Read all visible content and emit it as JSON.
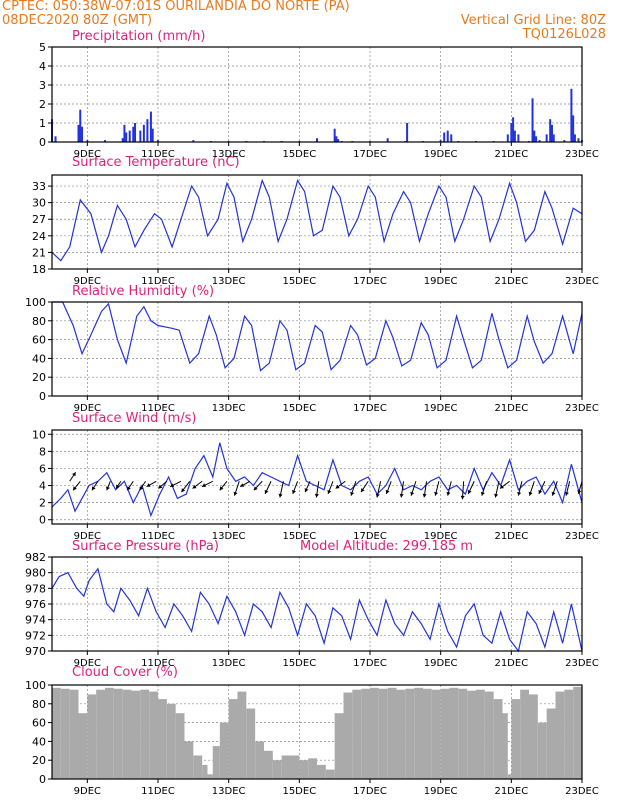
{
  "header": {
    "line1": "CPTEC:   050:38W-07:01S   OURILANDIA DO NORTE (PA)",
    "line2": "08DEC2020 80Z (GMT)",
    "vgrid": "Vertical Grid Line: 80Z",
    "code": "TQ0126L028"
  },
  "colors": {
    "header": "#e87a1e",
    "title": "#e0207a",
    "line": "#2233dd",
    "bar": "#2233dd",
    "cloud": "#aaaaaa",
    "grid": "#888888"
  },
  "chart_data": [
    {
      "type": "bar",
      "title": "Precipitation (mm/h)",
      "x_range": [
        8,
        23
      ],
      "ylim": [
        0,
        5
      ],
      "yticks": [
        0,
        1,
        2,
        3,
        4,
        5
      ],
      "x_ticks": [
        "9DEC",
        "11DEC",
        "13DEC",
        "15DEC",
        "17DEC",
        "19DEC",
        "21DEC",
        "23DEC"
      ],
      "x_tick_days": [
        9,
        11,
        13,
        15,
        17,
        19,
        21,
        23
      ],
      "x": [
        8.0,
        8.1,
        8.75,
        8.8,
        8.85,
        9.0,
        9.5,
        10.0,
        10.05,
        10.1,
        10.2,
        10.3,
        10.35,
        10.5,
        10.6,
        10.7,
        10.8,
        10.85,
        11.0,
        12.0,
        12.5,
        13.0,
        13.5,
        14.0,
        14.5,
        15.0,
        15.5,
        16.0,
        16.05,
        16.1,
        16.2,
        16.5,
        17.0,
        17.5,
        18.0,
        18.05,
        18.5,
        19.0,
        19.1,
        19.2,
        19.3,
        19.5,
        20.0,
        20.5,
        20.9,
        21.0,
        21.05,
        21.1,
        21.2,
        21.5,
        21.6,
        21.65,
        21.7,
        21.8,
        22.0,
        22.1,
        22.15,
        22.2,
        22.5,
        22.7,
        22.75,
        22.8,
        22.9,
        23.0
      ],
      "values": [
        1.2,
        0.3,
        0.9,
        1.7,
        0.8,
        0.1,
        0.1,
        0.2,
        0.9,
        0.5,
        0.6,
        0.8,
        1.0,
        0.6,
        0.9,
        1.2,
        1.6,
        0.7,
        0.1,
        0.1,
        0.05,
        0.05,
        0.05,
        0.05,
        0.05,
        0.05,
        0.2,
        0.7,
        0.3,
        0.15,
        0.05,
        0.05,
        0.05,
        0.2,
        0.05,
        1.0,
        0.05,
        0.1,
        0.5,
        0.6,
        0.4,
        0.05,
        0.05,
        0.05,
        0.4,
        1.0,
        1.3,
        0.6,
        0.4,
        0.05,
        2.3,
        0.6,
        0.3,
        0.1,
        0.4,
        1.2,
        0.9,
        0.4,
        0.1,
        2.8,
        1.4,
        0.4,
        0.2,
        0.1
      ]
    },
    {
      "type": "line",
      "title": "Surface Temperature (nC)",
      "x_range": [
        8,
        23
      ],
      "ylim": [
        18,
        35
      ],
      "yticks": [
        18,
        21,
        24,
        27,
        30,
        33
      ],
      "x_ticks": [
        "9DEC",
        "11DEC",
        "13DEC",
        "15DEC",
        "17DEC",
        "19DEC",
        "21DEC",
        "23DEC"
      ],
      "x_tick_days": [
        9,
        11,
        13,
        15,
        17,
        19,
        21,
        23
      ],
      "x": [
        8.0,
        8.25,
        8.5,
        8.8,
        9.1,
        9.4,
        9.6,
        9.85,
        10.1,
        10.35,
        10.6,
        10.9,
        11.1,
        11.4,
        11.65,
        11.95,
        12.15,
        12.4,
        12.7,
        12.95,
        13.15,
        13.4,
        13.65,
        13.95,
        14.15,
        14.4,
        14.65,
        14.95,
        15.15,
        15.4,
        15.65,
        15.95,
        16.15,
        16.4,
        16.65,
        16.95,
        17.15,
        17.4,
        17.65,
        17.95,
        18.15,
        18.4,
        18.65,
        18.95,
        19.15,
        19.4,
        19.65,
        19.95,
        20.15,
        20.4,
        20.65,
        20.95,
        21.15,
        21.4,
        21.65,
        21.95,
        22.15,
        22.45,
        22.75,
        23.0
      ],
      "values": [
        21.0,
        19.5,
        22.0,
        30.5,
        28.0,
        21.0,
        24.0,
        29.5,
        27.0,
        22.0,
        25.0,
        28.0,
        27.0,
        22.0,
        27.0,
        33.0,
        31.0,
        24.0,
        27.0,
        33.5,
        31.0,
        23.0,
        27.0,
        34.0,
        31.0,
        23.0,
        27.0,
        34.0,
        32.0,
        24.0,
        25.0,
        33.0,
        31.0,
        24.0,
        27.0,
        33.0,
        31.0,
        23.0,
        28.0,
        32.0,
        30.0,
        23.0,
        28.0,
        33.0,
        31.0,
        23.0,
        27.0,
        33.0,
        31.0,
        23.0,
        27.0,
        33.5,
        30.0,
        23.0,
        25.0,
        32.0,
        29.0,
        22.5,
        29.0,
        28.0
      ]
    },
    {
      "type": "line",
      "title": "Relative Humidity (%)",
      "x_range": [
        8,
        23
      ],
      "ylim": [
        0,
        100
      ],
      "yticks": [
        0,
        20,
        40,
        60,
        80,
        100
      ],
      "x_ticks": [
        "9DEC",
        "11DEC",
        "13DEC",
        "15DEC",
        "17DEC",
        "19DEC",
        "21DEC",
        "23DEC"
      ],
      "x_tick_days": [
        9,
        11,
        13,
        15,
        17,
        19,
        21,
        23
      ],
      "x": [
        8.0,
        8.3,
        8.6,
        8.85,
        9.1,
        9.4,
        9.6,
        9.85,
        10.1,
        10.4,
        10.6,
        10.8,
        11.0,
        11.4,
        11.6,
        11.9,
        12.15,
        12.45,
        12.65,
        12.9,
        13.15,
        13.45,
        13.65,
        13.9,
        14.15,
        14.45,
        14.65,
        14.9,
        15.15,
        15.45,
        15.65,
        15.9,
        16.15,
        16.45,
        16.65,
        16.9,
        17.15,
        17.45,
        17.65,
        17.9,
        18.15,
        18.45,
        18.65,
        18.9,
        19.15,
        19.45,
        19.65,
        19.9,
        20.15,
        20.45,
        20.65,
        20.9,
        21.15,
        21.45,
        21.65,
        21.9,
        22.15,
        22.45,
        22.75,
        23.0
      ],
      "values": [
        100.0,
        100.0,
        75.0,
        45.0,
        65.0,
        90.0,
        98.0,
        60.0,
        35.0,
        85.0,
        95.0,
        80.0,
        75.0,
        72.0,
        70.0,
        35.0,
        45.0,
        85.0,
        65.0,
        30.0,
        40.0,
        85.0,
        75.0,
        27.0,
        35.0,
        80.0,
        70.0,
        28.0,
        35.0,
        75.0,
        68.0,
        28.0,
        38.0,
        75.0,
        65.0,
        33.0,
        40.0,
        80.0,
        62.0,
        32.0,
        38.0,
        78.0,
        65.0,
        30.0,
        38.0,
        85.0,
        60.0,
        30.0,
        38.0,
        88.0,
        60.0,
        30.0,
        38.0,
        85.0,
        58.0,
        35.0,
        45.0,
        85.0,
        45.0,
        88.0
      ]
    },
    {
      "type": "line",
      "title": "Surface Wind (m/s)",
      "x_range": [
        8,
        23
      ],
      "ylim": [
        -0.5,
        10.5
      ],
      "yticks": [
        0,
        2,
        4,
        6,
        8,
        10
      ],
      "x_ticks": [
        "9DEC",
        "11DEC",
        "13DEC",
        "15DEC",
        "17DEC",
        "19DEC",
        "21DEC",
        "23DEC"
      ],
      "x_tick_days": [
        9,
        11,
        13,
        15,
        17,
        19,
        21,
        23
      ],
      "x": [
        8.0,
        8.25,
        8.45,
        8.65,
        8.85,
        9.05,
        9.3,
        9.55,
        9.8,
        10.05,
        10.3,
        10.55,
        10.8,
        11.05,
        11.3,
        11.55,
        11.8,
        12.05,
        12.3,
        12.55,
        12.75,
        12.95,
        13.2,
        13.45,
        13.7,
        13.95,
        14.2,
        14.45,
        14.7,
        14.95,
        15.2,
        15.45,
        15.7,
        15.95,
        16.2,
        16.45,
        16.7,
        16.95,
        17.2,
        17.45,
        17.7,
        17.95,
        18.2,
        18.45,
        18.7,
        18.95,
        19.2,
        19.45,
        19.7,
        19.95,
        20.2,
        20.45,
        20.7,
        20.95,
        21.2,
        21.45,
        21.7,
        21.95,
        22.2,
        22.45,
        22.7,
        23.0
      ],
      "values": [
        1.5,
        2.5,
        3.5,
        1.0,
        2.5,
        4.0,
        4.5,
        5.5,
        3.5,
        4.5,
        2.0,
        4.0,
        0.5,
        3.0,
        5.0,
        2.5,
        3.0,
        6.0,
        7.5,
        5.0,
        9.0,
        6.0,
        4.5,
        5.0,
        4.0,
        5.5,
        5.0,
        4.5,
        4.0,
        7.5,
        4.5,
        4.0,
        3.5,
        7.0,
        4.0,
        3.5,
        4.5,
        5.0,
        3.0,
        4.0,
        6.0,
        3.5,
        4.0,
        3.5,
        4.5,
        5.0,
        3.5,
        4.0,
        3.0,
        6.0,
        3.5,
        5.5,
        4.0,
        7.0,
        3.5,
        4.5,
        5.0,
        3.0,
        4.5,
        2.0,
        6.5,
        2.0
      ]
    },
    {
      "type": "line",
      "title": "Surface Pressure (hPa)",
      "annotation": "Model Altitude: 299.185 m",
      "x_range": [
        8,
        23
      ],
      "ylim": [
        970,
        982
      ],
      "yticks": [
        970,
        972,
        974,
        976,
        978,
        980,
        982
      ],
      "x_ticks": [
        "9DEC",
        "11DEC",
        "13DEC",
        "15DEC",
        "17DEC",
        "19DEC",
        "21DEC",
        "23DEC"
      ],
      "x_tick_days": [
        9,
        11,
        13,
        15,
        17,
        19,
        21,
        23
      ],
      "x": [
        8.0,
        8.2,
        8.45,
        8.7,
        8.9,
        9.05,
        9.3,
        9.55,
        9.75,
        9.95,
        10.2,
        10.45,
        10.7,
        10.95,
        11.2,
        11.45,
        11.7,
        11.95,
        12.2,
        12.45,
        12.7,
        12.95,
        13.2,
        13.45,
        13.7,
        13.95,
        14.2,
        14.45,
        14.7,
        14.95,
        15.2,
        15.45,
        15.7,
        15.95,
        16.2,
        16.45,
        16.7,
        16.95,
        17.2,
        17.45,
        17.7,
        17.95,
        18.2,
        18.45,
        18.7,
        18.95,
        19.2,
        19.45,
        19.7,
        19.95,
        20.2,
        20.45,
        20.7,
        20.95,
        21.2,
        21.45,
        21.7,
        21.95,
        22.2,
        22.45,
        22.7,
        23.0
      ],
      "values": [
        978.0,
        979.5,
        980.0,
        978.0,
        977.0,
        979.0,
        980.5,
        976.0,
        975.0,
        978.0,
        976.5,
        974.5,
        978.0,
        975.0,
        973.0,
        976.0,
        974.5,
        972.5,
        977.5,
        976.0,
        973.5,
        977.0,
        975.0,
        972.0,
        976.0,
        975.0,
        973.0,
        977.5,
        975.5,
        972.0,
        976.0,
        974.5,
        971.0,
        975.5,
        974.5,
        971.5,
        976.5,
        974.0,
        972.0,
        976.5,
        973.5,
        972.0,
        975.0,
        973.5,
        971.5,
        976.0,
        972.5,
        970.5,
        974.5,
        976.0,
        972.0,
        971.0,
        975.0,
        971.5,
        970.0,
        975.0,
        973.5,
        970.5,
        975.0,
        971.0,
        976.0,
        970.0
      ]
    },
    {
      "type": "area",
      "title": "Cloud Cover (%)",
      "x_range": [
        8,
        23
      ],
      "ylim": [
        0,
        100
      ],
      "yticks": [
        0,
        20,
        40,
        60,
        80,
        100
      ],
      "x_ticks": [
        "9DEC",
        "11DEC",
        "13DEC",
        "15DEC",
        "17DEC",
        "19DEC",
        "21DEC",
        "23DEC"
      ],
      "x_tick_days": [
        9,
        11,
        13,
        15,
        17,
        19,
        21,
        23
      ],
      "x": [
        8.0,
        8.25,
        8.5,
        8.75,
        9.0,
        9.25,
        9.5,
        9.75,
        10.0,
        10.25,
        10.5,
        10.75,
        11.0,
        11.25,
        11.5,
        11.75,
        12.0,
        12.25,
        12.4,
        12.55,
        12.75,
        13.0,
        13.25,
        13.5,
        13.75,
        14.0,
        14.25,
        14.5,
        14.75,
        15.0,
        15.25,
        15.5,
        15.75,
        16.0,
        16.25,
        16.5,
        16.75,
        17.0,
        17.25,
        17.5,
        17.75,
        18.0,
        18.25,
        18.5,
        18.75,
        19.0,
        19.25,
        19.5,
        19.75,
        20.0,
        20.25,
        20.5,
        20.75,
        20.9,
        21.0,
        21.25,
        21.5,
        21.75,
        22.0,
        22.25,
        22.5,
        22.75,
        23.0
      ],
      "values": [
        97.0,
        96.0,
        95.0,
        70.0,
        90.0,
        95.0,
        97.0,
        96.0,
        95.0,
        94.0,
        95.0,
        93.0,
        85.0,
        80.0,
        70.0,
        40.0,
        25.0,
        15.0,
        5.0,
        35.0,
        60.0,
        85.0,
        93.0,
        75.0,
        40.0,
        30.0,
        20.0,
        25.0,
        25.0,
        20.0,
        22.0,
        15.0,
        10.0,
        70.0,
        92.0,
        95.0,
        96.0,
        97.0,
        96.0,
        97.0,
        95.0,
        96.0,
        97.0,
        96.0,
        95.0,
        96.0,
        97.0,
        96.0,
        94.0,
        95.0,
        93.0,
        85.0,
        70.0,
        5.0,
        85.0,
        95.0,
        90.0,
        60.0,
        75.0,
        93.0,
        95.0,
        98.0,
        98.0
      ]
    }
  ],
  "wind_vectors": {
    "x": [
      8.5,
      8.8,
      9.3,
      9.65,
      9.95,
      10.3,
      10.65,
      10.95,
      11.25,
      11.65,
      11.9,
      12.25,
      12.55,
      12.95,
      13.3,
      13.6,
      13.95,
      14.2,
      14.55,
      14.95,
      15.3,
      15.55,
      15.95,
      16.3,
      16.6,
      16.95,
      17.3,
      17.6,
      17.95,
      18.3,
      18.6,
      18.95,
      19.3,
      19.65,
      19.95,
      20.3,
      20.65,
      20.95,
      21.3,
      21.65,
      21.95,
      22.3,
      22.65,
      23.0
    ],
    "u": [
      0.5,
      -0.6,
      -0.5,
      -0.3,
      -0.4,
      -0.5,
      -0.5,
      -0.8,
      -0.7,
      -0.9,
      -0.7,
      -0.8,
      -0.9,
      -0.6,
      -0.4,
      -0.8,
      -0.7,
      -0.5,
      -0.3,
      -0.4,
      -0.4,
      -0.2,
      -0.4,
      -0.8,
      -0.4,
      -0.6,
      -0.3,
      -0.4,
      -0.2,
      -0.4,
      -0.2,
      -0.3,
      -0.3,
      -0.1,
      -0.5,
      -0.4,
      -0.3,
      -0.8,
      -0.3,
      -0.4,
      -0.5,
      -0.4,
      -0.3,
      -0.3
    ],
    "v": [
      0.5,
      -0.5,
      -0.5,
      -0.5,
      -0.4,
      -0.5,
      -0.5,
      -0.3,
      -0.4,
      -0.3,
      -0.6,
      -0.4,
      -0.3,
      -0.5,
      -0.8,
      -0.3,
      -0.5,
      -0.7,
      -0.9,
      -0.7,
      -0.6,
      -0.9,
      -0.7,
      -0.4,
      -0.8,
      -0.6,
      -0.9,
      -0.7,
      -0.9,
      -0.8,
      -0.9,
      -0.8,
      -0.8,
      -1.0,
      -0.7,
      -0.8,
      -0.9,
      -0.4,
      -0.8,
      -0.8,
      -0.7,
      -0.8,
      -0.8,
      -0.7
    ]
  }
}
